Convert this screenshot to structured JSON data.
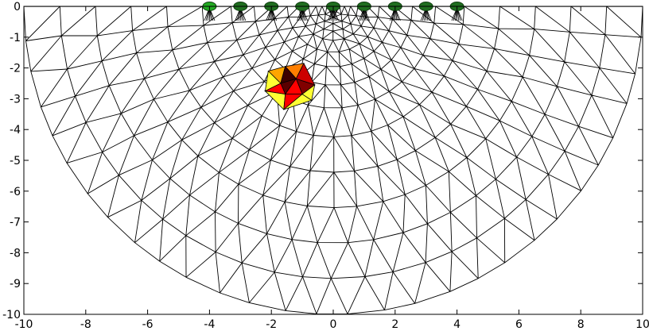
{
  "figure": {
    "x_ticks": [
      "-10",
      "-8",
      "-6",
      "-4",
      "-2",
      "0",
      "2",
      "4",
      "6",
      "8",
      "10"
    ],
    "y_ticks": [
      "0",
      "-1",
      "-2",
      "-3",
      "-4",
      "-5",
      "-6",
      "-7",
      "-8",
      "-9",
      "-10"
    ]
  },
  "chart_data": {
    "type": "mesh",
    "xlim": [
      -10,
      10
    ],
    "ylim": [
      -10,
      0
    ],
    "grid": false,
    "domain": {
      "shape": "half-disk",
      "center": [
        0,
        0
      ],
      "radius": 10
    },
    "electrodes": {
      "x": [
        -4,
        -3,
        -2,
        -1,
        0,
        1,
        2,
        3,
        4
      ],
      "y": 0,
      "colors": [
        "#22aa22",
        "#1f6e1f",
        "#1f6e1f",
        "#1f6e1f",
        "#1f6e1f",
        "#1f6e1f",
        "#1f6e1f",
        "#1f6e1f",
        "#1f6e1f"
      ]
    },
    "anomaly": {
      "center": [
        -1.6,
        -2.6
      ],
      "colors": [
        "#ffff33",
        "#ffa500",
        "#ff7f00",
        "#ff0000",
        "#cc0000",
        "#800000",
        "#5a0000",
        "#3d0000"
      ],
      "cells": [
        {
          "points": [
            [
              -2.1,
              -2.1
            ],
            [
              -1.55,
              -1.95
            ],
            [
              -1.7,
              -2.5
            ]
          ],
          "level": 1
        },
        {
          "points": [
            [
              -1.55,
              -1.95
            ],
            [
              -0.95,
              -1.85
            ],
            [
              -1.2,
              -2.35
            ]
          ],
          "level": 2
        },
        {
          "points": [
            [
              -0.95,
              -1.85
            ],
            [
              -0.6,
              -2.55
            ],
            [
              -1.2,
              -2.35
            ]
          ],
          "level": 4
        },
        {
          "points": [
            [
              -1.55,
              -1.95
            ],
            [
              -1.2,
              -2.35
            ],
            [
              -1.7,
              -2.5
            ]
          ],
          "level": 7
        },
        {
          "points": [
            [
              -1.2,
              -2.35
            ],
            [
              -1.55,
              -2.85
            ],
            [
              -1.7,
              -2.5
            ]
          ],
          "level": 6
        },
        {
          "points": [
            [
              -1.2,
              -2.35
            ],
            [
              -0.6,
              -2.55
            ],
            [
              -1.0,
              -2.85
            ]
          ],
          "level": 5
        },
        {
          "points": [
            [
              -1.2,
              -2.35
            ],
            [
              -1.0,
              -2.85
            ],
            [
              -1.55,
              -2.85
            ]
          ],
          "level": 3
        },
        {
          "points": [
            [
              -2.1,
              -2.1
            ],
            [
              -1.7,
              -2.5
            ],
            [
              -2.2,
              -2.75
            ]
          ],
          "level": 0
        },
        {
          "points": [
            [
              -1.7,
              -2.5
            ],
            [
              -1.55,
              -2.85
            ],
            [
              -2.2,
              -2.75
            ]
          ],
          "level": 3
        },
        {
          "points": [
            [
              -2.2,
              -2.75
            ],
            [
              -1.55,
              -2.85
            ],
            [
              -1.6,
              -3.35
            ]
          ],
          "level": 0
        },
        {
          "points": [
            [
              -1.55,
              -2.85
            ],
            [
              -1.0,
              -2.85
            ],
            [
              -1.6,
              -3.35
            ]
          ],
          "level": 3
        },
        {
          "points": [
            [
              -1.0,
              -2.85
            ],
            [
              -0.7,
              -3.05
            ],
            [
              -1.6,
              -3.35
            ]
          ],
          "level": 0
        },
        {
          "points": [
            [
              -1.0,
              -2.85
            ],
            [
              -0.6,
              -2.55
            ],
            [
              -0.7,
              -3.05
            ]
          ],
          "level": 0
        }
      ]
    }
  }
}
